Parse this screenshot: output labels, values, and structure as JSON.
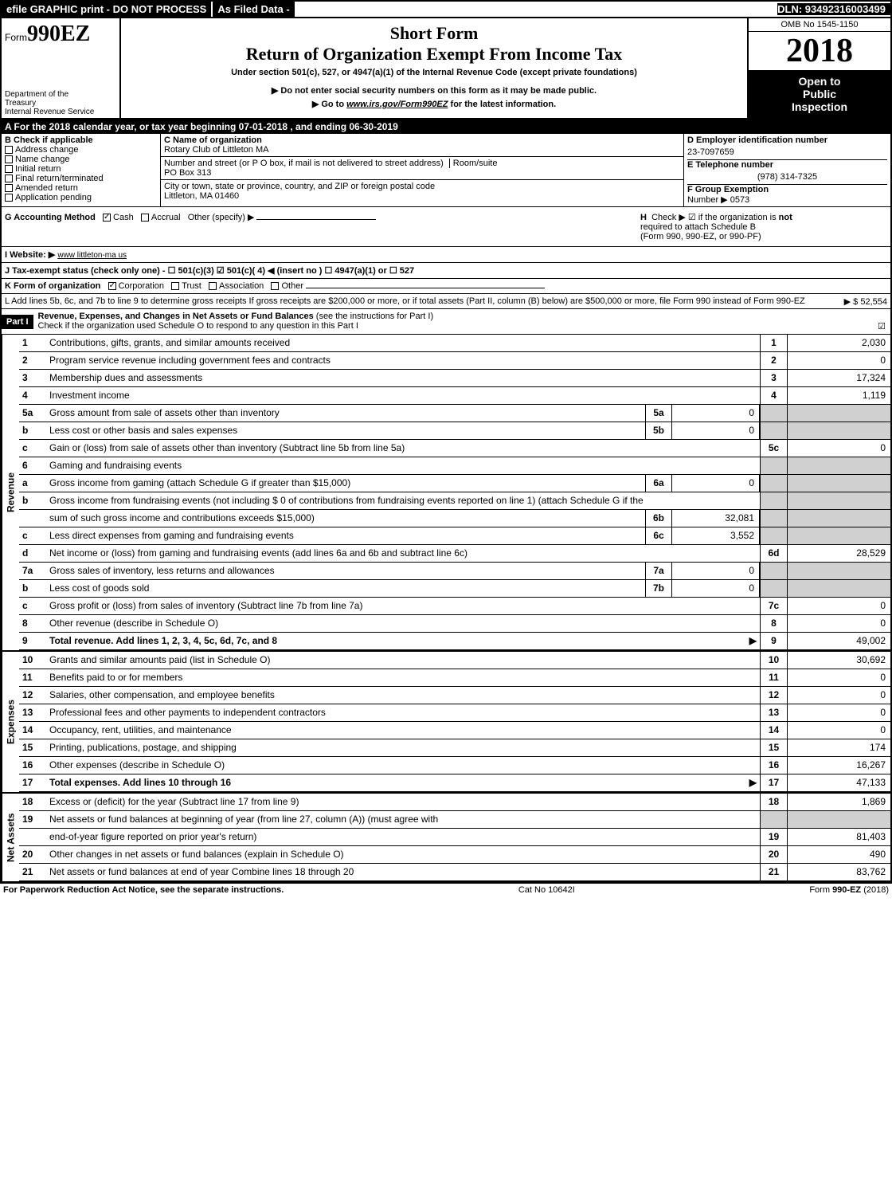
{
  "top": {
    "efile": "efile GRAPHIC print - DO NOT PROCESS",
    "as_filed": "As Filed Data -",
    "dln": "DLN: 93492316003499"
  },
  "header": {
    "form_prefix": "Form",
    "form_no": "990EZ",
    "omb": "OMB No 1545-1150",
    "year": "2018",
    "short_form": "Short Form",
    "title": "Return of Organization Exempt From Income Tax",
    "sub1": "Under section 501(c), 527, or 4947(a)(1) of the Internal Revenue Code (except private foundations)",
    "sub2": "▶ Do not enter social security numbers on this form as it may be made public.",
    "sub3_pre": "▶ Go to ",
    "sub3_link": "www.irs.gov/Form990EZ",
    "sub3_post": " for the latest information.",
    "dept1": "Department of the",
    "dept2": "Treasury",
    "dept3": "Internal Revenue Service",
    "inspection1": "Open to",
    "inspection2": "Public",
    "inspection3": "Inspection"
  },
  "section_a": "A  For the 2018 calendar year, or tax year beginning 07-01-2018             , and ending 06-30-2019",
  "section_b": {
    "label": "B  Check if applicable",
    "opts": [
      "Address change",
      "Name change",
      "Initial return",
      "Final return/terminated",
      "Amended return",
      "Application pending"
    ]
  },
  "section_c": {
    "name_label": "C Name of organization",
    "name": "Rotary Club of Littleton MA",
    "addr_label": "Number and street (or P  O  box, if mail is not delivered to street address)",
    "room_label": "Room/suite",
    "addr": "PO Box 313",
    "city_label": "City or town, state or province, country, and ZIP or foreign postal code",
    "city": "Littleton, MA  01460"
  },
  "section_d": {
    "label": "D Employer identification number",
    "ein": "23-7097659",
    "e_label": "E Telephone number",
    "phone": "(978) 314-7325",
    "f_label": "F Group Exemption",
    "f_label2": "Number  ▶",
    "f_num": "0573"
  },
  "section_g": {
    "label": "G Accounting Method",
    "cash": "Cash",
    "accrual": "Accrual",
    "other": "Other (specify) ▶",
    "h_label": "H",
    "h_text1": "Check ▶  ☑ if the organization is ",
    "h_not": "not",
    "h_text2": "required to attach Schedule B",
    "h_text3": "(Form 990, 990-EZ, or 990-PF)"
  },
  "section_i": {
    "label": "I Website: ▶",
    "site": "www littleton-ma us"
  },
  "section_j": "J Tax-exempt status (check only one) - ☐ 501(c)(3) ☑ 501(c)( 4) ◀ (insert no ) ☐ 4947(a)(1) or ☐ 527",
  "section_k": {
    "label": "K Form of organization",
    "corp": "Corporation",
    "trust": "Trust",
    "assoc": "Association",
    "other": "Other"
  },
  "section_l": {
    "text": "L Add lines 5b, 6c, and 7b to line 9 to determine gross receipts  If gross receipts are $200,000 or more, or if total assets (Part II, column (B) below) are $500,000 or more, file Form 990 instead of Form 990-EZ",
    "amount": "▶ $ 52,554"
  },
  "part1": {
    "label": "Part I",
    "title": "Revenue, Expenses, and Changes in Net Assets or Fund Balances",
    "title_paren": " (see the instructions for Part I)",
    "check_line": "Check if the organization used Schedule O to respond to any question in this Part I",
    "check_mark": "☑"
  },
  "rev": [
    {
      "n": "1",
      "d": "Contributions, gifts, grants, and similar amounts received",
      "rn": "1",
      "rv": "2,030"
    },
    {
      "n": "2",
      "d": "Program service revenue including government fees and contracts",
      "rn": "2",
      "rv": "0"
    },
    {
      "n": "3",
      "d": "Membership dues and assessments",
      "rn": "3",
      "rv": "17,324"
    },
    {
      "n": "4",
      "d": "Investment income",
      "rn": "4",
      "rv": "1,119"
    },
    {
      "n": "5a",
      "d": "Gross amount from sale of assets other than inventory",
      "mn": "5a",
      "mv": "0"
    },
    {
      "n": "b",
      "d": "Less  cost or other basis and sales expenses",
      "mn": "5b",
      "mv": "0"
    },
    {
      "n": "c",
      "d": "Gain or (loss) from sale of assets other than inventory (Subtract line 5b from line 5a)",
      "rn": "5c",
      "rv": "0"
    },
    {
      "n": "6",
      "d": "Gaming and fundraising events"
    },
    {
      "n": "a",
      "d": "Gross income from gaming (attach Schedule G if greater than $15,000)",
      "mn": "6a",
      "mv": "0"
    },
    {
      "n": "b",
      "d": "Gross income from fundraising events (not including $  0          of contributions from fundraising events reported on line 1) (attach Schedule G if the"
    },
    {
      "n": "",
      "d": "sum of such gross income and contributions exceeds $15,000)",
      "mn": "6b",
      "mv": "32,081"
    },
    {
      "n": "c",
      "d": "Less  direct expenses from gaming and fundraising events",
      "mn": "6c",
      "mv": "3,552"
    },
    {
      "n": "d",
      "d": "Net income or (loss) from gaming and fundraising events (add lines 6a and 6b and subtract line 6c)",
      "rn": "6d",
      "rv": "28,529"
    },
    {
      "n": "7a",
      "d": "Gross sales of inventory, less returns and allowances",
      "mn": "7a",
      "mv": "0"
    },
    {
      "n": "b",
      "d": "Less  cost of goods sold",
      "mn": "7b",
      "mv": "0"
    },
    {
      "n": "c",
      "d": "Gross profit or (loss) from sales of inventory (Subtract line 7b from line 7a)",
      "rn": "7c",
      "rv": "0"
    },
    {
      "n": "8",
      "d": "Other revenue (describe in Schedule O)",
      "rn": "8",
      "rv": "0"
    },
    {
      "n": "9",
      "d": "Total revenue. Add lines 1, 2, 3, 4, 5c, 6d, 7c, and 8",
      "rn": "9",
      "rv": "49,002",
      "bold": true,
      "arrow": true
    }
  ],
  "exp": [
    {
      "n": "10",
      "d": "Grants and similar amounts paid (list in Schedule O)",
      "rn": "10",
      "rv": "30,692"
    },
    {
      "n": "11",
      "d": "Benefits paid to or for members",
      "rn": "11",
      "rv": "0"
    },
    {
      "n": "12",
      "d": "Salaries, other compensation, and employee benefits",
      "rn": "12",
      "rv": "0"
    },
    {
      "n": "13",
      "d": "Professional fees and other payments to independent contractors",
      "rn": "13",
      "rv": "0"
    },
    {
      "n": "14",
      "d": "Occupancy, rent, utilities, and maintenance",
      "rn": "14",
      "rv": "0"
    },
    {
      "n": "15",
      "d": "Printing, publications, postage, and shipping",
      "rn": "15",
      "rv": "174"
    },
    {
      "n": "16",
      "d": "Other expenses (describe in Schedule O)",
      "rn": "16",
      "rv": "16,267"
    },
    {
      "n": "17",
      "d": "Total expenses. Add lines 10 through 16",
      "rn": "17",
      "rv": "47,133",
      "bold": true,
      "arrow": true
    }
  ],
  "net": [
    {
      "n": "18",
      "d": "Excess or (deficit) for the year (Subtract line 17 from line 9)",
      "rn": "18",
      "rv": "1,869"
    },
    {
      "n": "19",
      "d": "Net assets or fund balances at beginning of year (from line 27, column (A)) (must agree with"
    },
    {
      "n": "",
      "d": "end-of-year figure reported on prior year's return)",
      "rn": "19",
      "rv": "81,403"
    },
    {
      "n": "20",
      "d": "Other changes in net assets or fund balances (explain in Schedule O)",
      "rn": "20",
      "rv": "490"
    },
    {
      "n": "21",
      "d": "Net assets or fund balances at end of year  Combine lines 18 through 20",
      "rn": "21",
      "rv": "83,762"
    }
  ],
  "side_labels": {
    "rev": "Revenue",
    "exp": "Expenses",
    "net": "Net Assets"
  },
  "footer": {
    "left": "For Paperwork Reduction Act Notice, see the separate instructions.",
    "mid": "Cat  No  10642I",
    "right": "Form 990-EZ (2018)"
  }
}
